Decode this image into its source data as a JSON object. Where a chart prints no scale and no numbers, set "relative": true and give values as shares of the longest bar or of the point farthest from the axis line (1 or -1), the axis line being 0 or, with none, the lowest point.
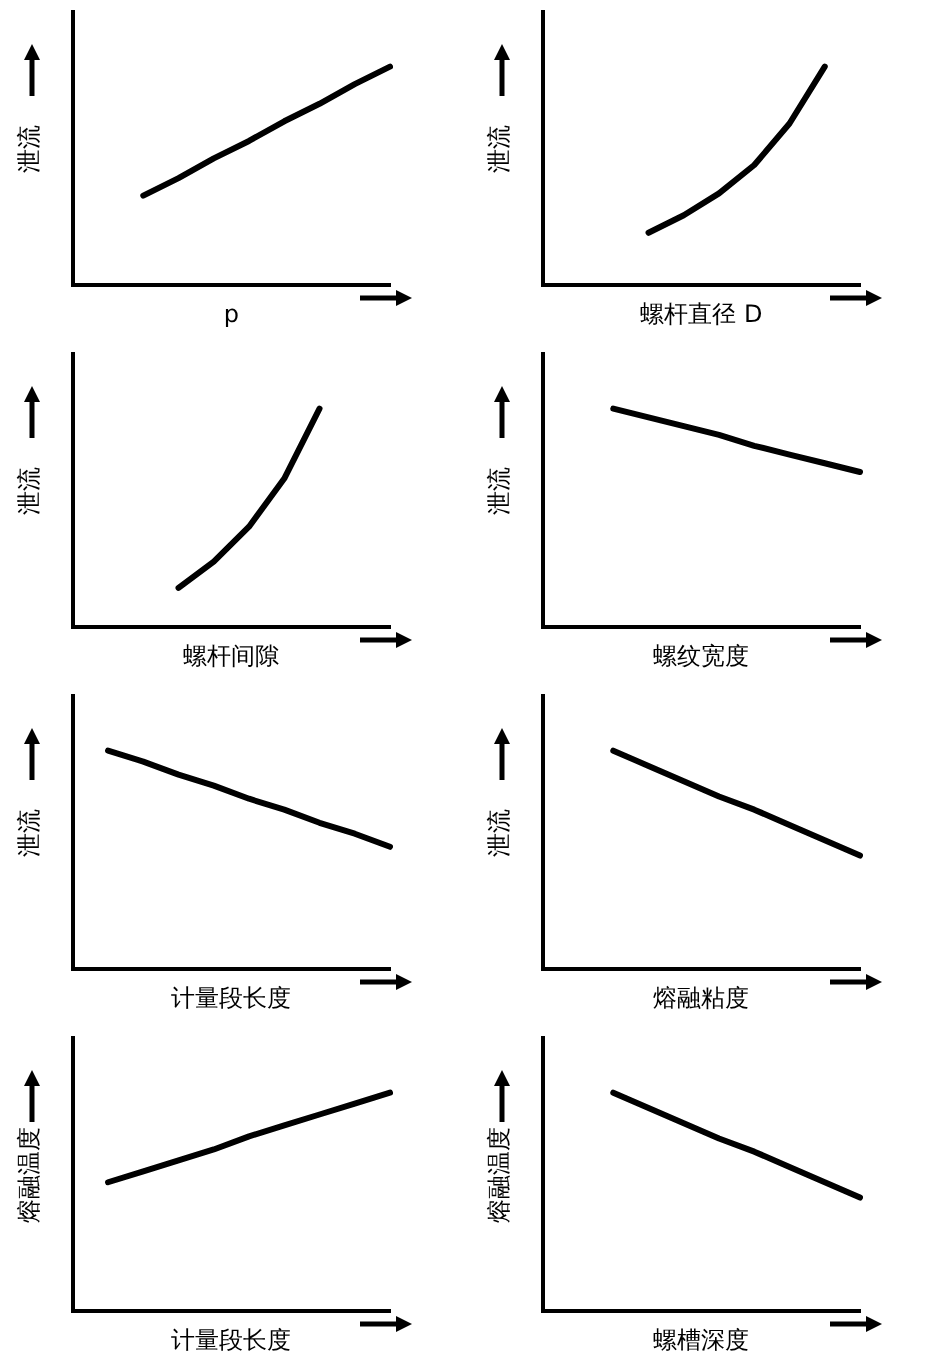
{
  "chart_data": [
    {
      "type": "line",
      "relative": true,
      "tick_labels": false,
      "grid": false,
      "legend": false,
      "marker": "none",
      "ylabel": "泄流",
      "xlabel": "p",
      "categories": [
        null,
        null,
        null,
        null,
        null,
        null,
        null,
        null,
        null,
        null
      ],
      "series": [
        {
          "color": "#000000",
          "values": [
            null,
            null,
            0.41,
            0.49,
            0.58,
            0.66,
            0.75,
            0.83,
            0.92,
            1.0
          ]
        }
      ]
    },
    {
      "type": "line",
      "relative": true,
      "tick_labels": false,
      "grid": false,
      "legend": false,
      "marker": "none",
      "ylabel": "泄流",
      "xlabel": "螺杆直径 D",
      "categories": [
        null,
        null,
        null,
        null,
        null,
        null,
        null,
        null,
        null,
        null
      ],
      "series": [
        {
          "color": "#000000",
          "values": [
            null,
            null,
            null,
            0.24,
            0.32,
            0.42,
            0.55,
            0.74,
            1.0,
            null
          ]
        }
      ]
    },
    {
      "type": "line",
      "relative": true,
      "tick_labels": false,
      "grid": false,
      "legend": false,
      "marker": "none",
      "ylabel": "泄流",
      "xlabel": "螺杆间隙",
      "categories": [
        null,
        null,
        null,
        null,
        null,
        null,
        null,
        null,
        null,
        null
      ],
      "series": [
        {
          "color": "#000000",
          "values": [
            null,
            null,
            null,
            0.18,
            0.3,
            0.46,
            0.68,
            1.0,
            null,
            null
          ]
        }
      ]
    },
    {
      "type": "line",
      "relative": true,
      "tick_labels": false,
      "grid": false,
      "legend": false,
      "marker": "none",
      "ylabel": "泄流",
      "xlabel": "螺纹宽度",
      "categories": [
        null,
        null,
        null,
        null,
        null,
        null,
        null,
        null,
        null,
        null
      ],
      "series": [
        {
          "color": "#000000",
          "values": [
            null,
            null,
            1.0,
            0.96,
            0.92,
            0.88,
            0.83,
            0.79,
            0.75,
            0.71
          ]
        }
      ]
    },
    {
      "type": "line",
      "relative": true,
      "tick_labels": false,
      "grid": false,
      "legend": false,
      "marker": "none",
      "ylabel": "泄流",
      "xlabel": "计量段长度",
      "categories": [
        null,
        null,
        null,
        null,
        null,
        null,
        null,
        null,
        null,
        null
      ],
      "series": [
        {
          "color": "#000000",
          "values": [
            null,
            1.0,
            0.95,
            0.89,
            0.84,
            0.78,
            0.73,
            0.67,
            0.62,
            0.56
          ]
        }
      ]
    },
    {
      "type": "line",
      "relative": true,
      "tick_labels": false,
      "grid": false,
      "legend": false,
      "marker": "none",
      "ylabel": "泄流",
      "xlabel": "熔融粘度",
      "categories": [
        null,
        null,
        null,
        null,
        null,
        null,
        null,
        null,
        null,
        null
      ],
      "series": [
        {
          "color": "#000000",
          "values": [
            null,
            null,
            1.0,
            0.93,
            0.86,
            0.79,
            0.73,
            0.66,
            0.59,
            0.52
          ]
        }
      ]
    },
    {
      "type": "line",
      "relative": true,
      "tick_labels": false,
      "grid": false,
      "legend": false,
      "marker": "none",
      "ylabel": "熔融温度",
      "xlabel": "计量段长度",
      "categories": [
        null,
        null,
        null,
        null,
        null,
        null,
        null,
        null,
        null,
        null
      ],
      "series": [
        {
          "color": "#000000",
          "values": [
            null,
            0.59,
            0.64,
            0.69,
            0.74,
            0.8,
            0.85,
            0.9,
            0.95,
            1.0
          ]
        }
      ]
    },
    {
      "type": "line",
      "relative": true,
      "tick_labels": false,
      "grid": false,
      "legend": false,
      "marker": "none",
      "ylabel": "熔融温度",
      "xlabel": "螺槽深度",
      "categories": [
        null,
        null,
        null,
        null,
        null,
        null,
        null,
        null,
        null,
        null
      ],
      "series": [
        {
          "color": "#000000",
          "values": [
            null,
            null,
            1.0,
            0.93,
            0.86,
            0.79,
            0.73,
            0.66,
            0.59,
            0.52
          ]
        }
      ]
    }
  ]
}
